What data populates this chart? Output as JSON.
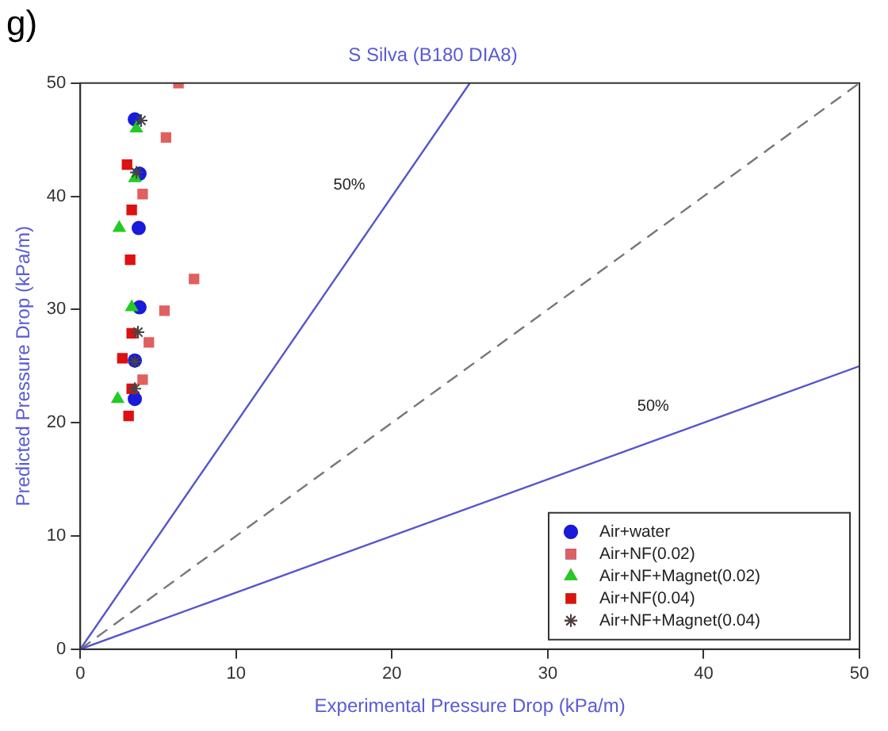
{
  "chart_data": {
    "type": "scatter",
    "title": "S Silva (B180 DIA8)",
    "xlabel": "Experimental Pressure Drop (kPa/m)",
    "ylabel": "Predicted Pressure Drop (kPa/m)",
    "annotations": [
      "g)"
    ],
    "xlim": [
      0,
      50
    ],
    "xticks": [
      0,
      10,
      20,
      30,
      40,
      50
    ],
    "ylim": [
      0,
      50
    ],
    "yticks": [
      0,
      10,
      20,
      30,
      40,
      50
    ],
    "grid": false,
    "legend": "bottom right",
    "series": [
      {
        "type": "line",
        "name": "50%",
        "color": "#5555cc",
        "x": [
          0,
          25
        ],
        "values": [
          0,
          50
        ],
        "marker": "none",
        "line_style": "solid"
      },
      {
        "type": "line",
        "color": "#777777",
        "x": [
          0,
          50
        ],
        "values": [
          0,
          50
        ],
        "marker": "none",
        "line_style": "dashed"
      },
      {
        "type": "line",
        "name": "50%",
        "color": "#5555cc",
        "x": [
          0,
          50
        ],
        "values": [
          0,
          25
        ],
        "marker": "none",
        "line_style": "solid"
      },
      {
        "name": "Air+water",
        "color": "#1a1adb",
        "marker": "circle",
        "x": [
          3.5,
          3.8,
          3.75,
          3.8,
          3.5,
          3.5
        ],
        "values": [
          46.8,
          42,
          37.2,
          30.2,
          25.5,
          22.1
        ]
      },
      {
        "name": "Air+NF(0.02)",
        "color": "#e06060",
        "marker": "square",
        "x": [
          6.3,
          5.5,
          4.0,
          7.3,
          5.4,
          4.4,
          4.0
        ],
        "values": [
          50,
          45.2,
          40.2,
          32.7,
          29.9,
          27.1,
          23.8
        ]
      },
      {
        "name": "Air+NF+Magnet(0.02)",
        "color": "#22cc22",
        "marker": "triangle",
        "x": [
          3.6,
          3.5,
          2.5,
          3.3,
          2.4
        ],
        "values": [
          46,
          41.6,
          37.2,
          30.2,
          22.1
        ]
      },
      {
        "name": "Air+NF(0.04)",
        "color": "#dd1111",
        "marker": "square",
        "x": [
          3.0,
          3.3,
          3.2,
          3.3,
          2.7,
          3.3,
          3.1
        ],
        "values": [
          42.8,
          38.8,
          34.4,
          27.9,
          25.7,
          23.0,
          20.6
        ]
      },
      {
        "name": "Air+NF+Magnet(0.04)",
        "color": "#444444",
        "marker": "cross",
        "x": [
          3.9,
          3.6,
          3.7,
          3.5,
          3.5
        ],
        "values": [
          46.7,
          42.1,
          28,
          25.4,
          23
        ]
      }
    ]
  }
}
